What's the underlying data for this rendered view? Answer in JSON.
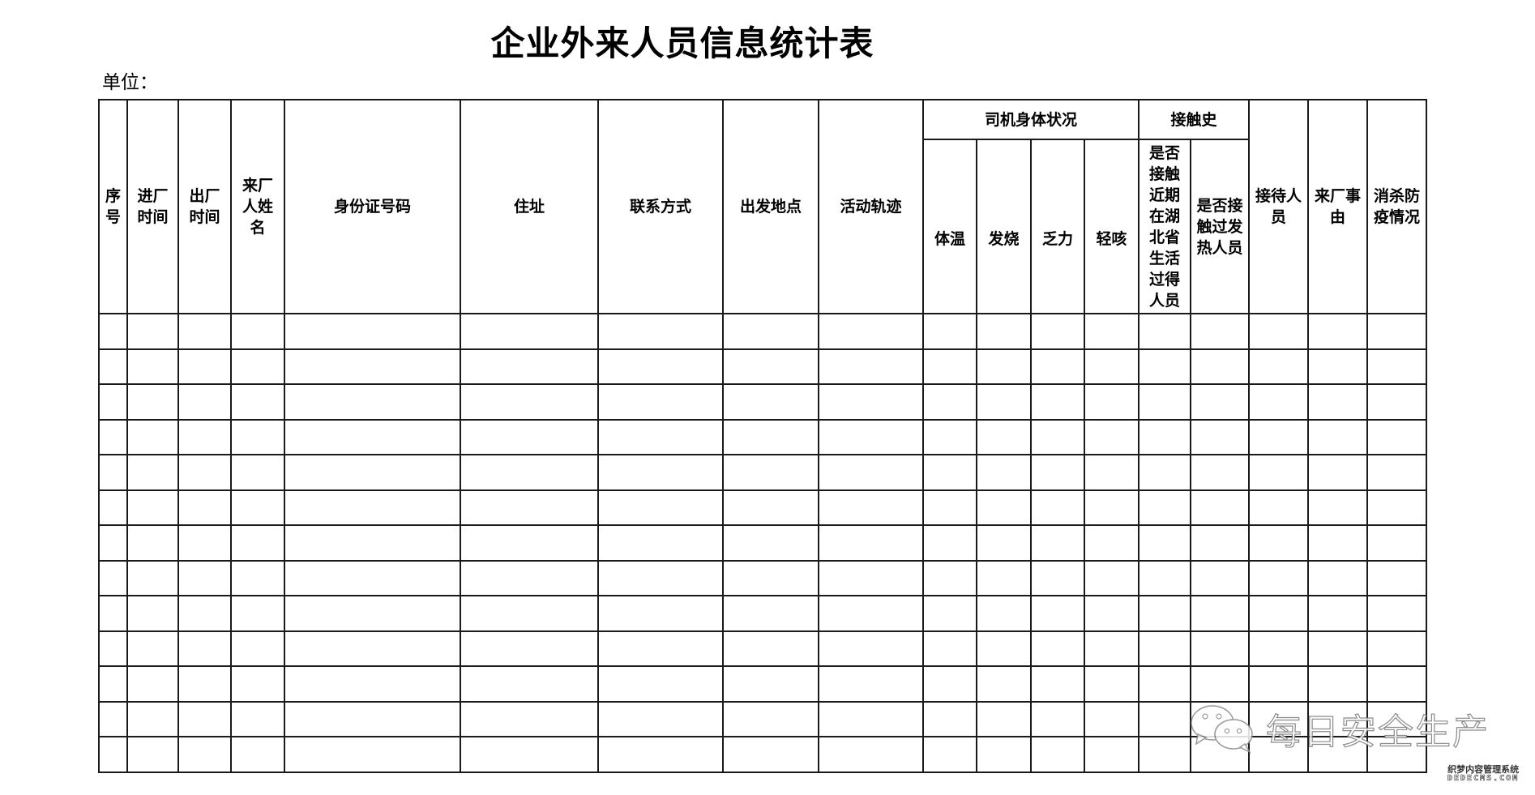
{
  "title": "企业外来人员信息统计表",
  "unit_label": "单位：",
  "headers": {
    "seq": "序号",
    "enter_time": "进厂时间",
    "exit_time": "出厂时间",
    "visitor_name": "来厂人姓名",
    "id_number": "身份证号码",
    "address": "住址",
    "contact": "联系方式",
    "departure": "出发地点",
    "trajectory": "活动轨迹",
    "driver_health": "司机身体状况",
    "temperature": "体温",
    "fever": "发烧",
    "fatigue": "乏力",
    "cough": "轻咳",
    "contact_history": "接触史",
    "hubei_contact": "是否接触近期在湖北省生活过得人员",
    "fever_contact": "是否接触过发热人员",
    "receiver": "接待人员",
    "purpose": "来厂事由",
    "disinfection": "消杀防疫情况"
  },
  "watermark": {
    "icon": "wechat-icon",
    "text": "每日安全生产"
  },
  "site_logo": {
    "line1": "织梦内容管理系统",
    "line2": "DEDECMS.COM"
  }
}
